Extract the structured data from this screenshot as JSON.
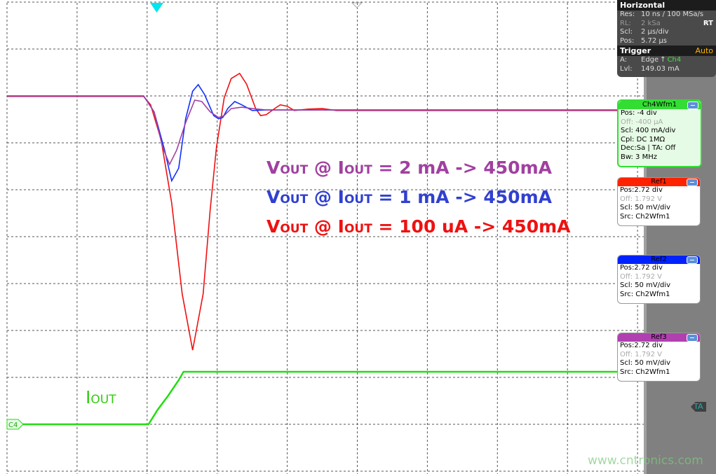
{
  "horizontal": {
    "title": "Horizontal",
    "rows": [
      {
        "k": "Res:",
        "v": "10 ns / 100 MSa/s"
      },
      {
        "k": "RL:",
        "v": "2 kSa",
        "extra": "RT"
      },
      {
        "k": "Scl:",
        "v": "2 µs/div"
      },
      {
        "k": "Pos:",
        "v": "5.72 µs"
      }
    ]
  },
  "trigger": {
    "title": "Trigger",
    "mode": "Auto",
    "a_label": "A:",
    "a_value": "Edge",
    "source": "Ch4",
    "lvl_label": "Lvl:",
    "lvl_value": "149.03 mA"
  },
  "panels": [
    {
      "title": "Ch4Wfm1",
      "color": "#33dd33",
      "bg": "#e6fbe6",
      "rows": [
        "Pos: -4 div",
        "Off: -400 µA",
        "Scl: 400 mA/div",
        "Cpl: DC 1MΩ",
        "Dec:Sa | TA: Off",
        "Bw: 3 MHz"
      ]
    },
    {
      "title": "Ref1",
      "color": "#ff2200",
      "bg": "#ffffff",
      "rows": [
        "Pos:2.72 div",
        "Off: 1.792 V",
        "Scl: 50 mV/div",
        "Src: Ch2Wfm1"
      ]
    },
    {
      "title": "Ref2",
      "color": "#0022ff",
      "bg": "#ffffff",
      "rows": [
        "Pos:2.72 div",
        "Off: 1.792 V",
        "Scl: 50 mV/div",
        "Src: Ch2Wfm1"
      ]
    },
    {
      "title": "Ref3",
      "color": "#b040b0",
      "bg": "#ffffff",
      "rows": [
        "Pos:2.72 div",
        "Off: 1.792 V",
        "Scl: 50 mV/div",
        "Src: Ch2Wfm1"
      ]
    }
  ],
  "markers": {
    "channel": "C4",
    "ta": "TA"
  },
  "watermark": "www.cntronics.com",
  "chart_data": {
    "type": "line",
    "xlabel": "",
    "ylabel": "",
    "x_unit": "div",
    "y_unit": "div",
    "xlim": [
      0,
      10
    ],
    "ylim": [
      -5,
      5
    ],
    "grid": true,
    "annotations": [
      {
        "main": "V",
        "sub": "OUT",
        "rest": " @ I",
        "sub2": "OUT",
        "tail": " = 2 mA -> 450mA",
        "color": "#a040a0"
      },
      {
        "main": "V",
        "sub": "OUT",
        "rest": " @ I",
        "sub2": "OUT",
        "tail": " = 1 mA -> 450mA",
        "color": "#3040d0"
      },
      {
        "main": "V",
        "sub": "OUT",
        "rest": " @ I",
        "sub2": "OUT",
        "tail": " = 100 uA -> 450mA",
        "color": "#ee1111"
      },
      {
        "main": "I",
        "sub": "OUT",
        "rest": "",
        "sub2": "",
        "tail": "",
        "color": "#33cc11"
      }
    ],
    "series": [
      {
        "color": "#ee1111",
        "x": [
          0,
          1.95,
          2.05,
          2.2,
          2.35,
          2.5,
          2.65,
          2.8,
          2.9,
          2.99,
          3.1,
          3.2,
          3.32,
          3.42,
          3.55,
          3.62,
          3.7,
          3.82,
          3.9,
          4.0,
          4.1,
          4.3,
          4.5,
          4.7,
          9.1
        ],
        "y": [
          2.99,
          2.99,
          2.81,
          2.06,
          0.72,
          -1.22,
          -2.42,
          -1.22,
          0.57,
          1.91,
          2.96,
          3.37,
          3.48,
          3.25,
          2.73,
          2.58,
          2.6,
          2.73,
          2.81,
          2.78,
          2.69,
          2.72,
          2.73,
          2.69,
          2.69
        ]
      },
      {
        "color": "#1030ff",
        "x": [
          0,
          1.95,
          2.1,
          2.25,
          2.35,
          2.45,
          2.55,
          2.65,
          2.73,
          2.82,
          2.95,
          3.02,
          3.08,
          3.15,
          3.25,
          3.35,
          3.5,
          3.7,
          9.1
        ],
        "y": [
          3.0,
          3.0,
          2.66,
          1.84,
          1.19,
          1.46,
          2.51,
          3.1,
          3.24,
          3.03,
          2.58,
          2.51,
          2.54,
          2.73,
          2.88,
          2.81,
          2.69,
          2.7,
          2.7
        ]
      },
      {
        "color": "#a040a0",
        "x": [
          0,
          1.95,
          2.1,
          2.22,
          2.32,
          2.42,
          2.55,
          2.68,
          2.78,
          2.9,
          3.02,
          3.1,
          3.2,
          3.35,
          3.5,
          3.7,
          9.1
        ],
        "y": [
          3.0,
          3.0,
          2.66,
          1.91,
          1.54,
          1.84,
          2.43,
          2.91,
          2.88,
          2.66,
          2.54,
          2.58,
          2.73,
          2.76,
          2.73,
          2.7,
          2.7
        ]
      },
      {
        "color": "#22dd11",
        "x": [
          0,
          2.02,
          2.15,
          2.3,
          2.45,
          2.52,
          9.1
        ],
        "y": [
          -4.0,
          -4.0,
          -3.69,
          -3.39,
          -3.06,
          -2.88,
          -2.88
        ]
      }
    ]
  }
}
